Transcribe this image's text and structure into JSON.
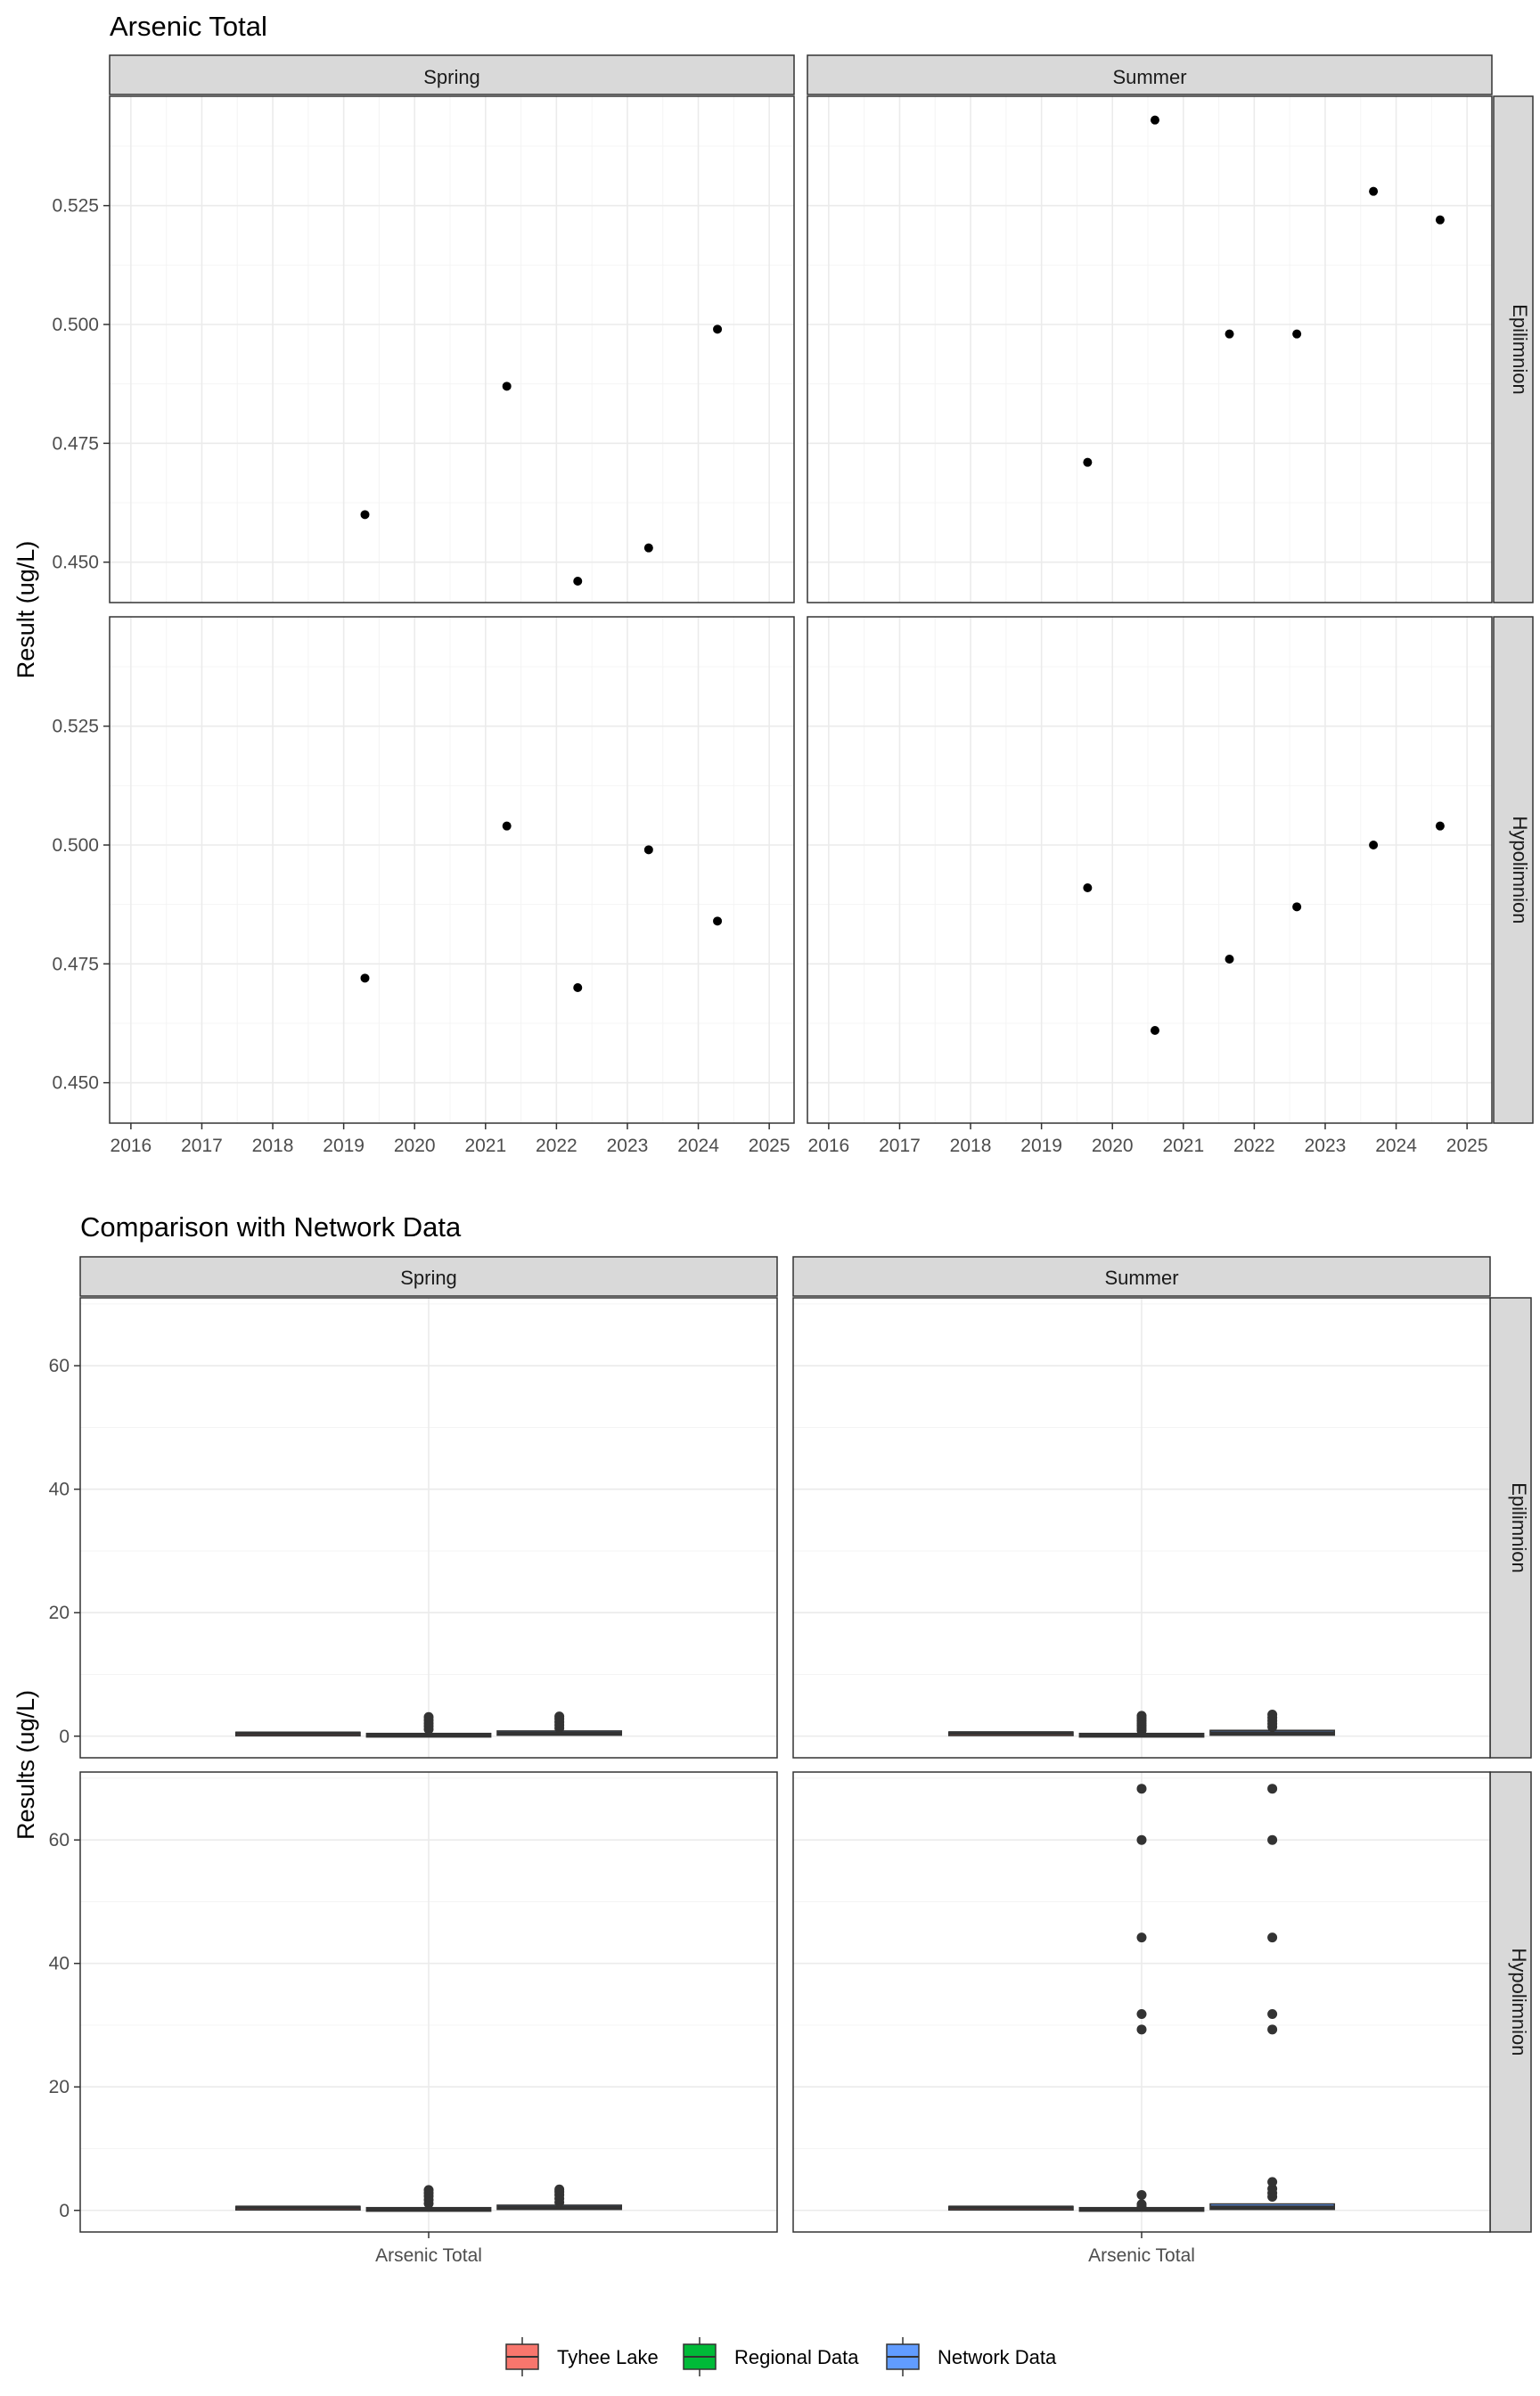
{
  "chart_data": [
    {
      "type": "scatter",
      "title": "Arsenic Total",
      "ylabel": "Result (ug/L)",
      "xlabel": "",
      "col_facets": [
        "Spring",
        "Summer"
      ],
      "row_facets": [
        "Epilimnion",
        "Hypolimnion"
      ],
      "x_ticks": [
        "2016",
        "2017",
        "2018",
        "2019",
        "2020",
        "2021",
        "2022",
        "2023",
        "2024",
        "2025"
      ],
      "y_ticks": [
        "0.450",
        "0.475",
        "0.500",
        "0.525"
      ],
      "xlim": [
        2015.7,
        2025.35
      ],
      "ylim": [
        0.4415,
        0.548
      ],
      "grid": true,
      "panels": [
        {
          "col": "Spring",
          "row": "Epilimnion",
          "points": [
            {
              "x": 2019.3,
              "y": 0.46
            },
            {
              "x": 2021.3,
              "y": 0.487
            },
            {
              "x": 2022.3,
              "y": 0.446
            },
            {
              "x": 2023.3,
              "y": 0.453
            },
            {
              "x": 2024.27,
              "y": 0.499
            }
          ]
        },
        {
          "col": "Summer",
          "row": "Epilimnion",
          "points": [
            {
              "x": 2019.65,
              "y": 0.471
            },
            {
              "x": 2020.6,
              "y": 0.543
            },
            {
              "x": 2021.65,
              "y": 0.498
            },
            {
              "x": 2022.6,
              "y": 0.498
            },
            {
              "x": 2023.68,
              "y": 0.528
            },
            {
              "x": 2024.62,
              "y": 0.522
            }
          ]
        },
        {
          "col": "Spring",
          "row": "Hypolimnion",
          "points": [
            {
              "x": 2019.3,
              "y": 0.472
            },
            {
              "x": 2021.3,
              "y": 0.504
            },
            {
              "x": 2022.3,
              "y": 0.47
            },
            {
              "x": 2023.3,
              "y": 0.499
            },
            {
              "x": 2024.27,
              "y": 0.484
            }
          ]
        },
        {
          "col": "Summer",
          "row": "Hypolimnion",
          "points": [
            {
              "x": 2019.65,
              "y": 0.491
            },
            {
              "x": 2020.6,
              "y": 0.461
            },
            {
              "x": 2021.65,
              "y": 0.476
            },
            {
              "x": 2022.6,
              "y": 0.487
            },
            {
              "x": 2023.68,
              "y": 0.5
            },
            {
              "x": 2024.62,
              "y": 0.504
            }
          ]
        }
      ]
    },
    {
      "type": "box",
      "title": "Comparison with Network Data",
      "ylabel": "Results (ug/L)",
      "xlabel": "",
      "col_facets": [
        "Spring",
        "Summer"
      ],
      "row_facets": [
        "Epilimnion",
        "Hypolimnion"
      ],
      "categories": [
        "Arsenic Total"
      ],
      "y_ticks": [
        "0",
        "20",
        "40",
        "60"
      ],
      "ylim": [
        -3.5,
        71
      ],
      "grid": true,
      "legend": {
        "position": "bottom",
        "items": [
          {
            "label": "Tyhee Lake",
            "color": "#f8766d"
          },
          {
            "label": "Regional Data",
            "color": "#00ba38"
          },
          {
            "label": "Network Data",
            "color": "#619cff"
          }
        ]
      },
      "panels": [
        {
          "col": "Spring",
          "row": "Epilimnion",
          "boxes": [
            {
              "series": "Tyhee Lake",
              "q1": 0.45,
              "median": 0.47,
              "q3": 0.49,
              "outliers": []
            },
            {
              "series": "Regional Data",
              "q1": 0.05,
              "median": 0.15,
              "q3": 0.3,
              "outliers": [
                1.1,
                1.6,
                2.1,
                2.6,
                3.1
              ]
            },
            {
              "series": "Network Data",
              "q1": 0.3,
              "median": 0.45,
              "q3": 0.7,
              "outliers": [
                1.3,
                1.8,
                2.3,
                2.8,
                3.2
              ]
            }
          ]
        },
        {
          "col": "Summer",
          "row": "Epilimnion",
          "boxes": [
            {
              "series": "Tyhee Lake",
              "q1": 0.47,
              "median": 0.5,
              "q3": 0.53,
              "outliers": []
            },
            {
              "series": "Regional Data",
              "q1": 0.05,
              "median": 0.15,
              "q3": 0.3,
              "outliers": [
                0.9,
                1.3,
                1.7,
                2.1,
                2.5,
                2.9,
                3.3
              ]
            },
            {
              "series": "Network Data",
              "q1": 0.3,
              "median": 0.5,
              "q3": 0.8,
              "outliers": [
                1.5,
                2.0,
                2.5,
                3.0,
                3.5
              ]
            }
          ]
        },
        {
          "col": "Spring",
          "row": "Hypolimnion",
          "boxes": [
            {
              "series": "Tyhee Lake",
              "q1": 0.47,
              "median": 0.49,
              "q3": 0.5,
              "outliers": []
            },
            {
              "series": "Regional Data",
              "q1": 0.05,
              "median": 0.15,
              "q3": 0.3,
              "outliers": [
                1.1,
                1.7,
                2.3,
                2.8,
                3.3
              ]
            },
            {
              "series": "Network Data",
              "q1": 0.3,
              "median": 0.45,
              "q3": 0.7,
              "outliers": [
                1.3,
                1.9,
                2.5,
                3.0,
                3.4
              ]
            }
          ]
        },
        {
          "col": "Summer",
          "row": "Hypolimnion",
          "boxes": [
            {
              "series": "Tyhee Lake",
              "q1": 0.48,
              "median": 0.49,
              "q3": 0.5,
              "outliers": []
            },
            {
              "series": "Regional Data",
              "q1": 0.05,
              "median": 0.15,
              "q3": 0.3,
              "outliers": [
                0.6,
                1.0,
                2.5,
                29.3,
                31.8,
                44.2,
                60.0,
                68.3
              ]
            },
            {
              "series": "Network Data",
              "q1": 0.3,
              "median": 0.5,
              "q3": 0.9,
              "outliers": [
                2.2,
                2.8,
                3.5,
                4.6,
                29.3,
                31.8,
                44.2,
                60.0,
                68.3
              ]
            }
          ]
        }
      ]
    }
  ]
}
